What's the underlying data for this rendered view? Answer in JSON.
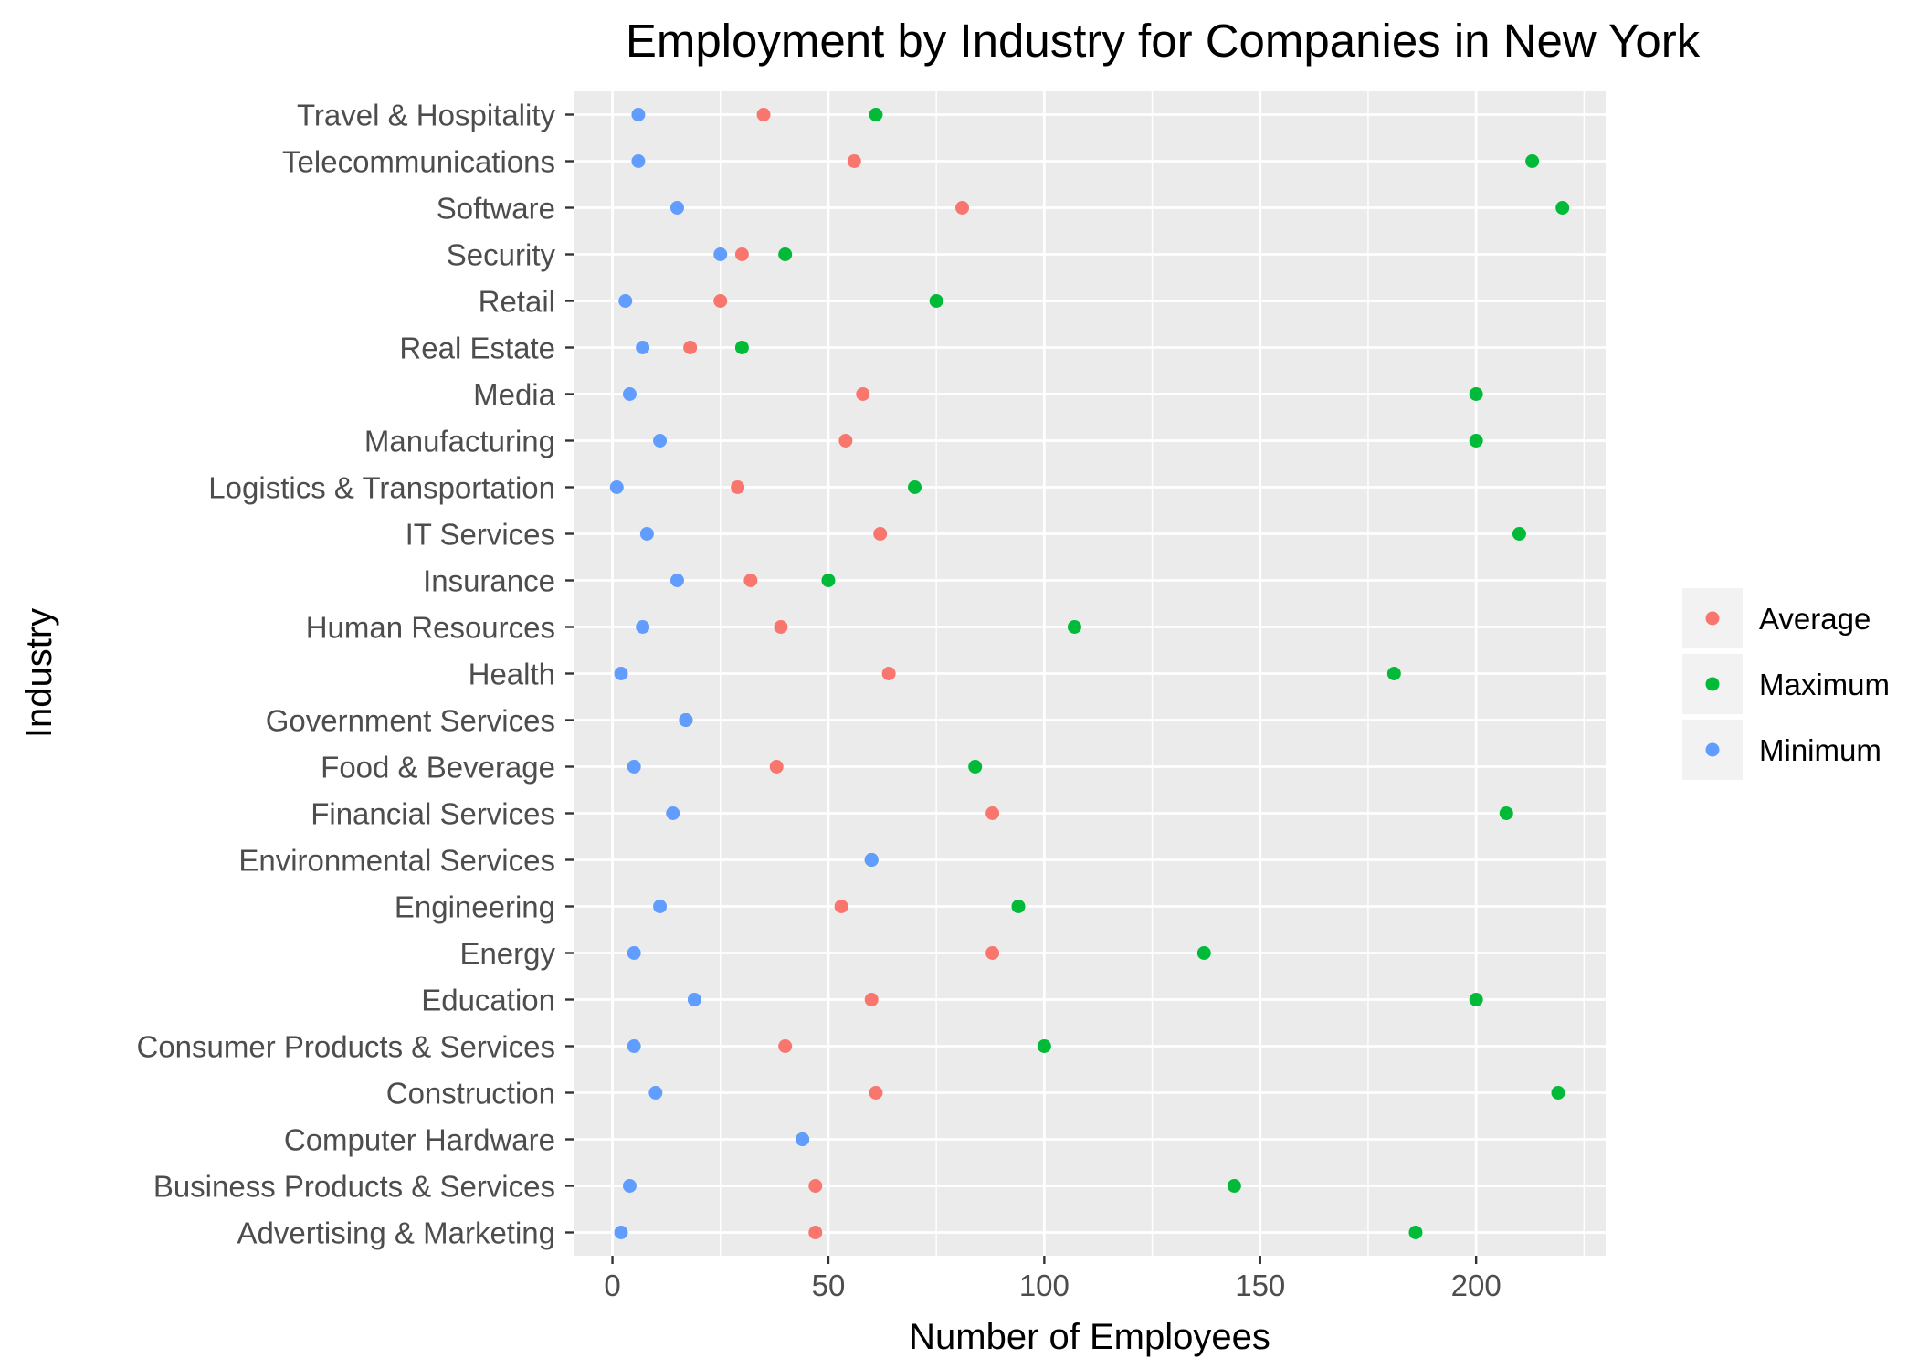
{
  "chart_data": {
    "type": "scatter",
    "title": "Employment by Industry for Companies in New York",
    "xlabel": "Number of Employees",
    "ylabel": "Industry",
    "xlim": [
      -9,
      230
    ],
    "xticks": [
      0,
      50,
      100,
      150,
      200
    ],
    "grid": true,
    "legend_position": "right",
    "categories": [
      "Advertising & Marketing",
      "Business Products & Services",
      "Computer Hardware",
      "Construction",
      "Consumer Products & Services",
      "Education",
      "Energy",
      "Engineering",
      "Environmental Services",
      "Financial Services",
      "Food & Beverage",
      "Government Services",
      "Health",
      "Human Resources",
      "Insurance",
      "IT Services",
      "Logistics & Transportation",
      "Manufacturing",
      "Media",
      "Real Estate",
      "Retail",
      "Security",
      "Software",
      "Telecommunications",
      "Travel & Hospitality"
    ],
    "series": [
      {
        "name": "Average",
        "color": "#F8766D",
        "values": [
          47,
          47,
          44,
          61,
          40,
          60,
          88,
          53,
          60,
          88,
          38,
          17,
          64,
          39,
          32,
          62,
          29,
          54,
          58,
          18,
          25,
          30,
          81,
          56,
          35
        ]
      },
      {
        "name": "Maximum",
        "color": "#00BA38",
        "values": [
          186,
          144,
          44,
          219,
          100,
          200,
          137,
          94,
          60,
          207,
          84,
          17,
          181,
          107,
          50,
          210,
          70,
          200,
          200,
          30,
          75,
          40,
          220,
          213,
          61
        ]
      },
      {
        "name": "Minimum",
        "color": "#619CFF",
        "values": [
          2,
          4,
          44,
          10,
          5,
          19,
          5,
          11,
          60,
          14,
          5,
          17,
          2,
          7,
          15,
          8,
          1,
          11,
          4,
          7,
          3,
          25,
          15,
          6,
          6
        ]
      }
    ]
  }
}
